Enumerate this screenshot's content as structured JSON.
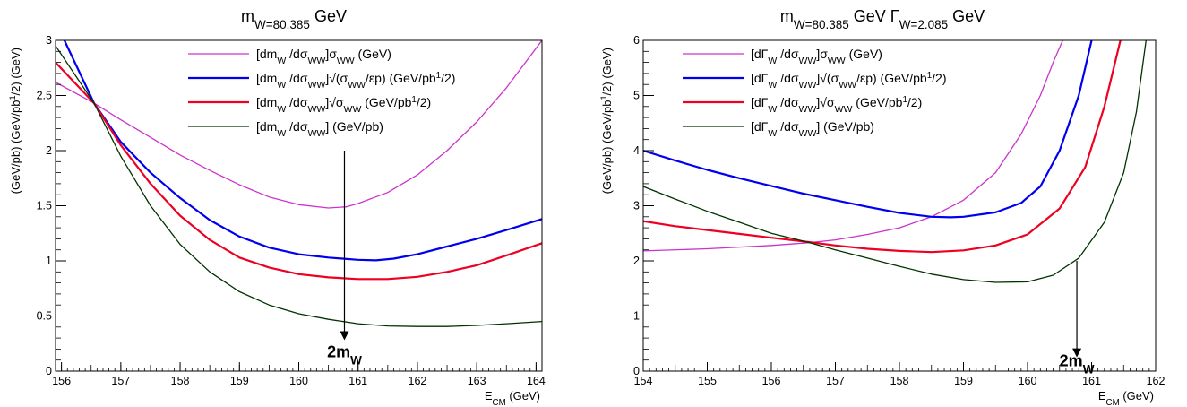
{
  "chart_data": [
    {
      "type": "line",
      "title": "m_W=80.385 GeV",
      "xlabel": "E_CM (GeV)",
      "ylabel": "(GeV/pb)  (GeV/pb^1/2)  (GeV)",
      "xlim": [
        155.9,
        164.1
      ],
      "ylim": [
        0,
        3
      ],
      "xticks": [
        "156",
        "157",
        "158",
        "159",
        "160",
        "161",
        "162",
        "163",
        "164"
      ],
      "yticks": [
        "0",
        "0.5",
        "1",
        "1.5",
        "2",
        "2.5",
        "3"
      ],
      "grid": false,
      "legend_position": "top-right",
      "series": [
        {
          "name": "[dm_W /dσ_WW]σ_WW (GeV)",
          "color": "#cc33cc",
          "x": [
            155.9,
            156.55,
            157.0,
            157.5,
            158.0,
            158.5,
            159.0,
            159.5,
            160.0,
            160.5,
            160.8,
            161.0,
            161.5,
            162.0,
            162.5,
            163.0,
            163.5,
            164.1
          ],
          "y": [
            2.62,
            2.43,
            2.28,
            2.12,
            1.96,
            1.82,
            1.69,
            1.58,
            1.51,
            1.48,
            1.49,
            1.52,
            1.62,
            1.78,
            2.0,
            2.26,
            2.57,
            3.0
          ]
        },
        {
          "name": "[dm_W /dσ_WW]√(σ_WW/εp) (GeV/pb^1/2)",
          "color": "#0000ee",
          "x": [
            156.05,
            156.55,
            157.0,
            157.5,
            158.0,
            158.5,
            159.0,
            159.5,
            160.0,
            160.5,
            161.0,
            161.3,
            161.6,
            162.0,
            162.5,
            163.0,
            163.5,
            164.1
          ],
          "y": [
            3.0,
            2.43,
            2.08,
            1.8,
            1.57,
            1.37,
            1.22,
            1.12,
            1.06,
            1.03,
            1.01,
            1.005,
            1.02,
            1.06,
            1.13,
            1.2,
            1.28,
            1.38
          ]
        },
        {
          "name": "[dm_W /dσ_WW]√σ_WW (GeV/pb^1/2)",
          "color": "#ee0022",
          "x": [
            155.9,
            156.55,
            157.0,
            157.5,
            158.0,
            158.5,
            159.0,
            159.5,
            160.0,
            160.5,
            161.0,
            161.5,
            162.0,
            162.5,
            163.0,
            163.5,
            164.1
          ],
          "y": [
            2.8,
            2.43,
            2.05,
            1.7,
            1.41,
            1.19,
            1.03,
            0.94,
            0.88,
            0.85,
            0.835,
            0.835,
            0.855,
            0.9,
            0.96,
            1.05,
            1.16
          ]
        },
        {
          "name": "[dm_W /dσ_WW] (GeV/pb)",
          "color": "#003300",
          "x": [
            155.9,
            156.55,
            157.0,
            157.5,
            158.0,
            158.5,
            159.0,
            159.5,
            160.0,
            160.5,
            161.0,
            161.5,
            162.0,
            162.5,
            163.0,
            163.5,
            164.1
          ],
          "y": [
            2.95,
            2.43,
            1.95,
            1.5,
            1.15,
            0.9,
            0.72,
            0.6,
            0.52,
            0.47,
            0.43,
            0.41,
            0.405,
            0.405,
            0.415,
            0.43,
            0.45
          ]
        }
      ],
      "annotation": {
        "label": "2m_W",
        "x": 160.77,
        "y_from": 2.0,
        "y_to": 0.28
      }
    },
    {
      "type": "line",
      "title": "m_W=80.385 GeV    Γ_W=2.085 GeV",
      "xlabel": "E_CM (GeV)",
      "ylabel": "(GeV/pb)  (GeV/pb^1/2)  (GeV)",
      "xlim": [
        154,
        162
      ],
      "ylim": [
        0,
        6
      ],
      "xticks": [
        "154",
        "155",
        "156",
        "157",
        "158",
        "159",
        "160",
        "161",
        "162"
      ],
      "yticks": [
        "0",
        "1",
        "2",
        "3",
        "4",
        "5",
        "6"
      ],
      "grid": false,
      "legend_position": "top-left",
      "series": [
        {
          "name": "[dΓ_W /dσ_WW]σ_WW (GeV)",
          "color": "#cc33cc",
          "x": [
            154.0,
            155.0,
            156.0,
            156.6,
            157.0,
            157.5,
            158.0,
            158.5,
            159.0,
            159.5,
            159.9,
            160.2,
            160.4,
            160.55
          ],
          "y": [
            2.18,
            2.22,
            2.28,
            2.33,
            2.38,
            2.48,
            2.6,
            2.8,
            3.1,
            3.6,
            4.3,
            5.0,
            5.6,
            6.0
          ]
        },
        {
          "name": "[dΓ_W /dσ_WW]√(σ_WW/εp) (GeV/pb^1/2)",
          "color": "#0000ee",
          "x": [
            154.0,
            154.5,
            155.0,
            155.5,
            156.0,
            156.5,
            157.0,
            157.5,
            158.0,
            158.5,
            158.8,
            159.0,
            159.5,
            159.9,
            160.2,
            160.5,
            160.8,
            161.0
          ],
          "y": [
            4.0,
            3.82,
            3.65,
            3.5,
            3.36,
            3.22,
            3.1,
            2.98,
            2.87,
            2.8,
            2.79,
            2.8,
            2.88,
            3.05,
            3.35,
            4.0,
            5.0,
            6.0
          ]
        },
        {
          "name": "[dΓ_W /dσ_WW]√σ_WW (GeV/pb^1/2)",
          "color": "#ee0022",
          "x": [
            154.0,
            154.5,
            155.0,
            155.5,
            156.0,
            156.6,
            157.0,
            157.5,
            158.0,
            158.5,
            159.0,
            159.5,
            160.0,
            160.5,
            160.9,
            161.2,
            161.45
          ],
          "y": [
            2.72,
            2.63,
            2.56,
            2.49,
            2.42,
            2.34,
            2.28,
            2.22,
            2.18,
            2.16,
            2.19,
            2.28,
            2.48,
            2.95,
            3.7,
            4.8,
            6.0
          ]
        },
        {
          "name": "[dΓ_W /dσ_WW] (GeV/pb)",
          "color": "#003300",
          "x": [
            154.0,
            154.5,
            155.0,
            155.5,
            156.0,
            156.6,
            157.0,
            157.5,
            158.0,
            158.5,
            159.0,
            159.5,
            160.0,
            160.4,
            160.8,
            161.2,
            161.5,
            161.7,
            161.85
          ],
          "y": [
            3.35,
            3.12,
            2.9,
            2.7,
            2.5,
            2.33,
            2.2,
            2.05,
            1.9,
            1.76,
            1.66,
            1.61,
            1.62,
            1.74,
            2.05,
            2.7,
            3.6,
            4.7,
            6.0
          ]
        }
      ],
      "annotation": {
        "label": "2m_W",
        "x": 160.77,
        "y_from": 2.0,
        "y_to": 0.25
      }
    }
  ]
}
